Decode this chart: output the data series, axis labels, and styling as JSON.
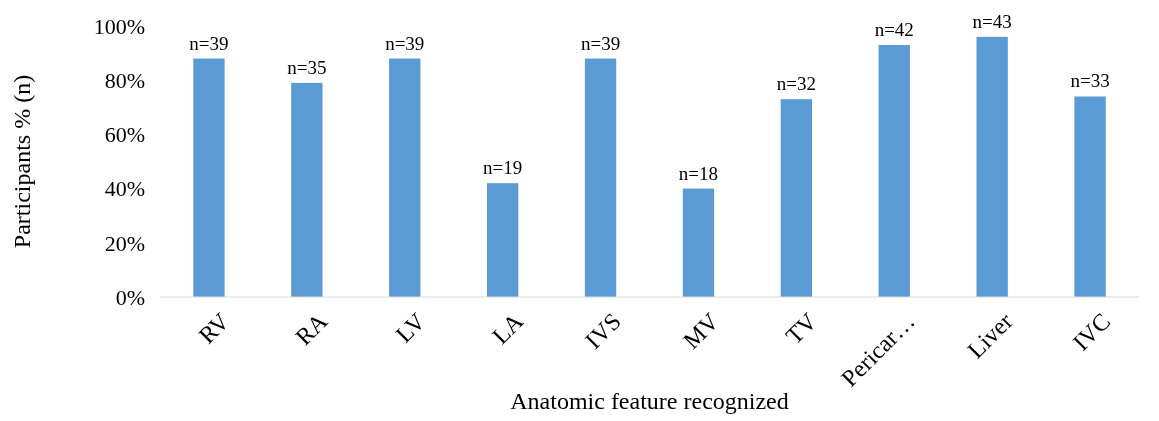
{
  "chart_data": {
    "type": "bar",
    "xlabel": "Anatomic feature recognized",
    "ylabel": "Participants % (n)",
    "categories": [
      "RV",
      "RA",
      "LV",
      "LA",
      "IVS",
      "MV",
      "TV",
      "Pericar…",
      "Liver",
      "IVC"
    ],
    "values": [
      88,
      79,
      88,
      42,
      88,
      40,
      73,
      93,
      96,
      74
    ],
    "annotations": [
      {
        "text": "n=39",
        "x": "RV",
        "y": 88
      },
      {
        "text": "n=35",
        "x": "RA",
        "y": 79
      },
      {
        "text": "n=39",
        "x": "LV",
        "y": 88
      },
      {
        "text": "n=19",
        "x": "LA",
        "y": 42
      },
      {
        "text": "n=39",
        "x": "IVS",
        "y": 88
      },
      {
        "text": "n=18",
        "x": "MV",
        "y": 40
      },
      {
        "text": "n=32",
        "x": "TV",
        "y": 73
      },
      {
        "text": "n=42",
        "x": "Pericar…",
        "y": 93
      },
      {
        "text": "n=43",
        "x": "Liver",
        "y": 96
      },
      {
        "text": "n=33",
        "x": "IVC",
        "y": 74
      }
    ],
    "color": "#5b9bd5",
    "ylim": [
      0,
      100
    ],
    "yticks": [
      {
        "value": 0,
        "label": "0%"
      },
      {
        "value": 20,
        "label": "20%"
      },
      {
        "value": 40,
        "label": "40%"
      },
      {
        "value": 60,
        "label": "60%"
      },
      {
        "value": 80,
        "label": "80%"
      },
      {
        "value": 100,
        "label": "100%"
      }
    ],
    "grid": false
  }
}
